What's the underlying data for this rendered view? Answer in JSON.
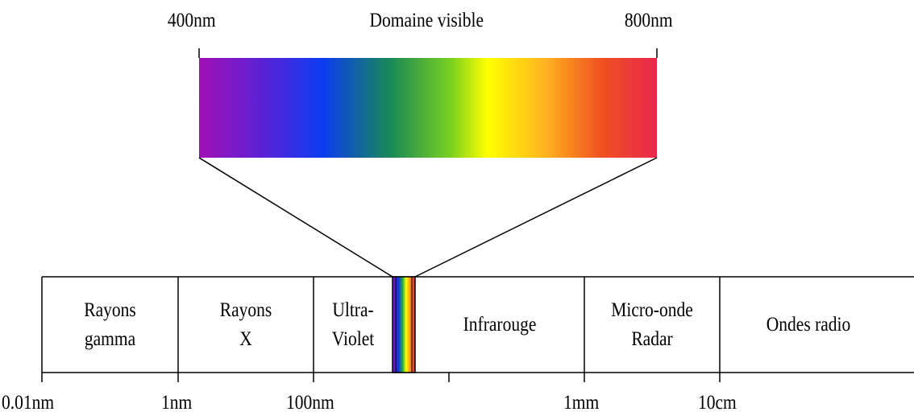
{
  "visible_band": {
    "start_label": "400nm",
    "title": "Domaine visible",
    "end_label": "800nm",
    "gradient_colors": [
      "#a10fb5",
      "#5a22d6",
      "#0c3cf0",
      "#1a8a55",
      "#7ad020",
      "#ffff00",
      "#ffb020",
      "#f05020",
      "#e8284e"
    ]
  },
  "regions": [
    {
      "line1": "Rayons",
      "line2": "gamma"
    },
    {
      "line1": "Rayons",
      "line2": "X"
    },
    {
      "line1": "Ultra-",
      "line2": "Violet"
    },
    {
      "line1": "Infrarouge",
      "line2": ""
    },
    {
      "line1": "Micro-onde",
      "line2": "Radar"
    },
    {
      "line1": "Ondes radio",
      "line2": ""
    }
  ],
  "axis_ticks": [
    "0.01nm",
    "1nm",
    "100nm",
    "1mm",
    "10cm"
  ]
}
